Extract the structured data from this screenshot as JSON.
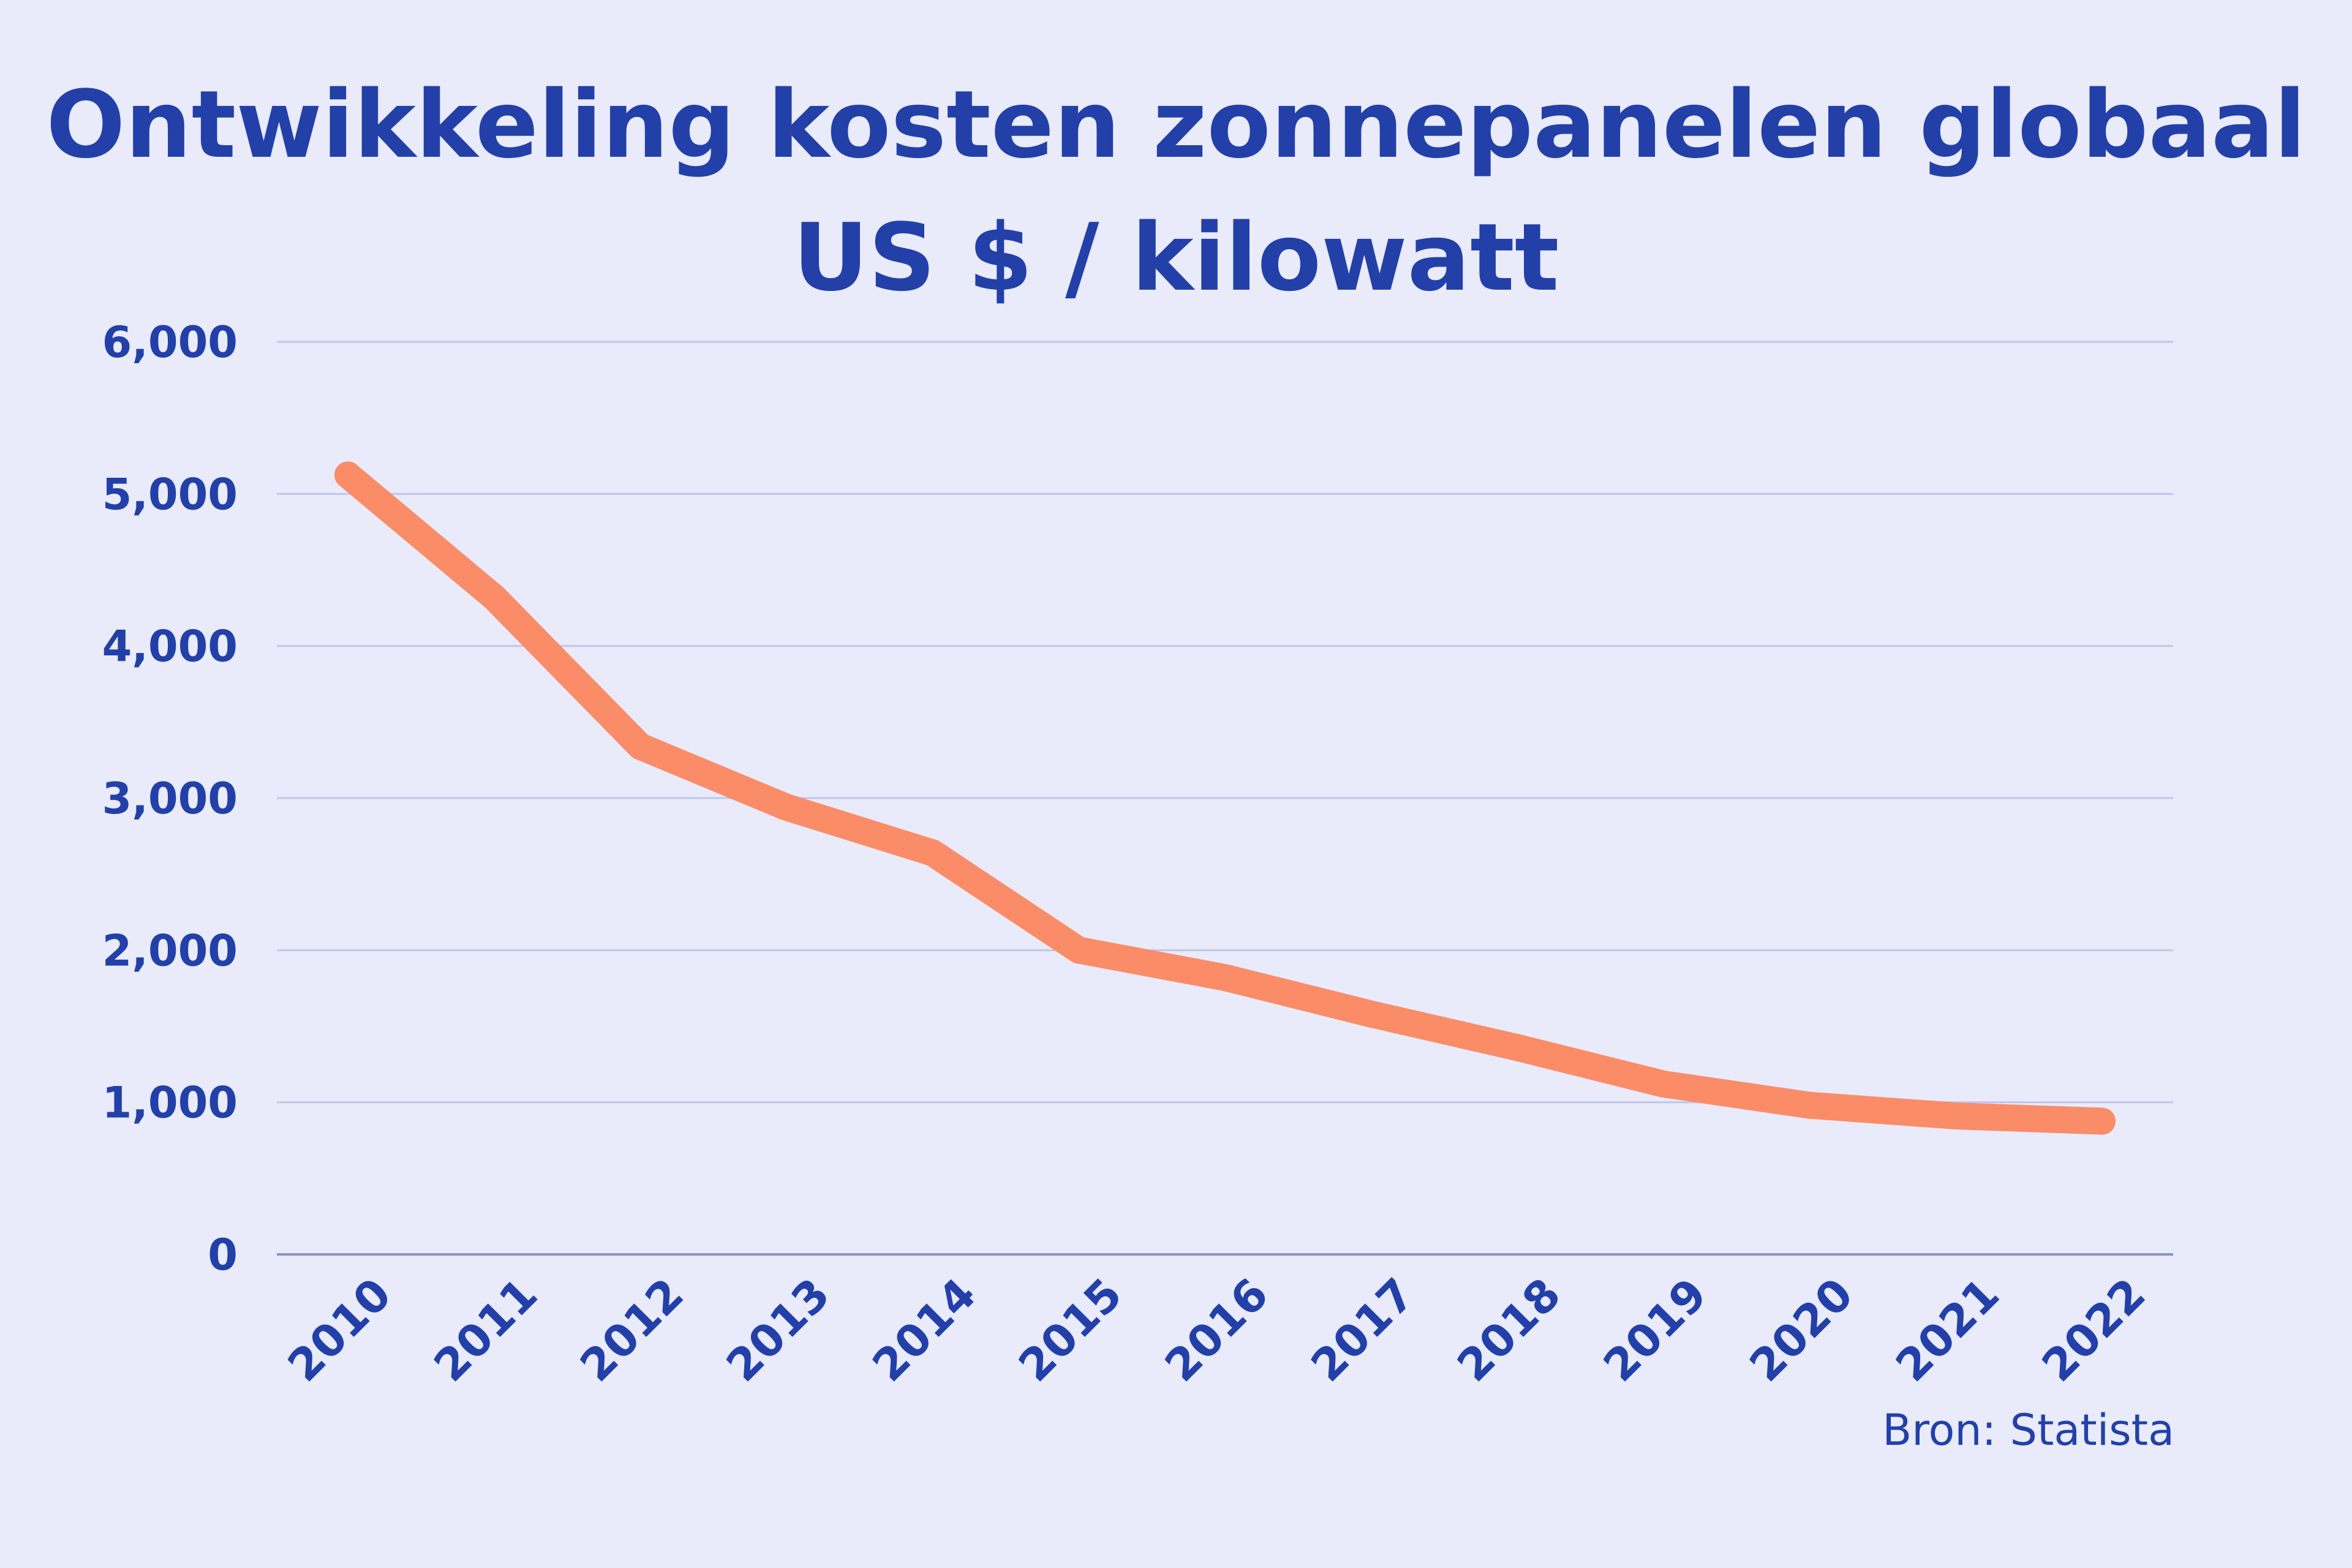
{
  "chart_data": {
    "type": "line",
    "title": "Ontwikkeling kosten zonnepanelen globaal",
    "subtitle": "US $ / kilowatt",
    "x": [
      "2010",
      "2011",
      "2012",
      "2013",
      "2014",
      "2015",
      "2016",
      "2017",
      "2018",
      "2019",
      "2020",
      "2021",
      "2022"
    ],
    "series": [
      {
        "values": [
          5124,
          4320,
          3340,
          2940,
          2640,
          2000,
          1820,
          1580,
          1360,
          1120,
          980,
          910,
          876
        ],
        "color": "#fa8c68"
      }
    ],
    "y_ticks": [
      "0",
      "1,000",
      "2,000",
      "3,000",
      "4,000",
      "5,000",
      "6,000"
    ],
    "ylim": [
      0,
      6000
    ],
    "grid": true,
    "legend": "none",
    "source": "Bron: Statista",
    "colors": {
      "background": "#e9ebfb",
      "text": "#2340a9",
      "grid": "#bfc6ea",
      "axis": "#8a94c6"
    }
  }
}
